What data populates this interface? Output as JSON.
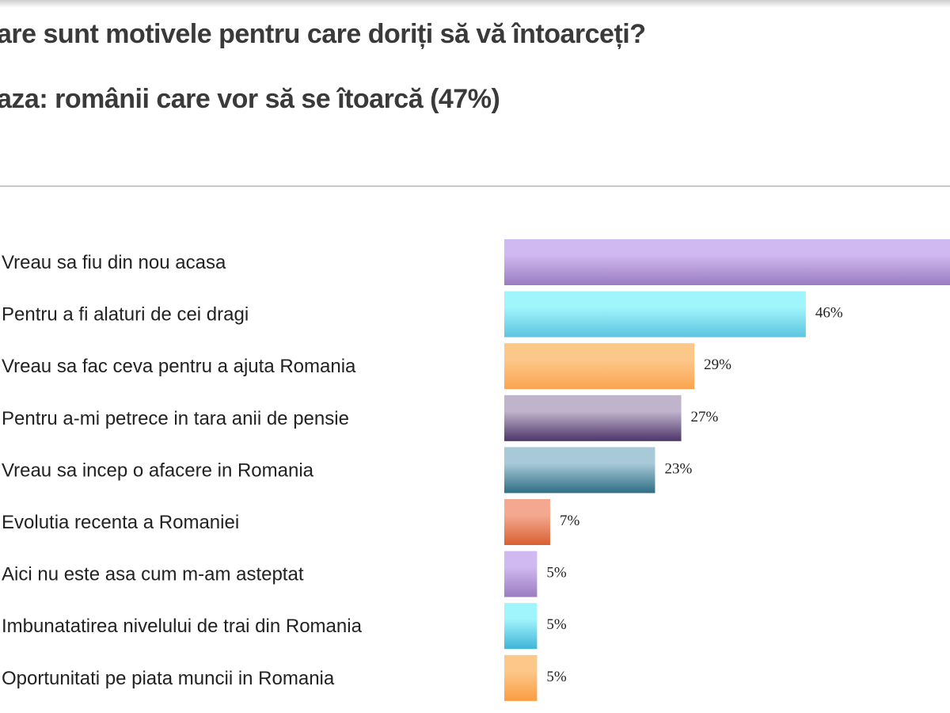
{
  "header": {
    "title": "are sunt motivele pentru care doriți să vă întoarceți?",
    "subtitle": "aza: românii care vor să se îtoarcă (47%)"
  },
  "chart_data": {
    "type": "bar",
    "orientation": "horizontal",
    "categories": [
      "Vreau sa fiu din nou acasa",
      "Pentru a fi alaturi de cei dragi",
      "Vreau sa fac ceva pentru a ajuta Romania",
      "Pentru a-mi petrece in tara anii de pensie",
      "Vreau sa incep o afacere in Romania",
      "Evolutia recenta a Romaniei",
      "Aici nu este asa cum m-am asteptat",
      "Imbunatatirea nivelului de trai din Romania",
      "Oportunitati pe piata muncii in Romania"
    ],
    "values": [
      null,
      46,
      29,
      27,
      23,
      7,
      5,
      5,
      5
    ],
    "value_labels": [
      "",
      "46%",
      "29%",
      "27%",
      "23%",
      "7%",
      "5%",
      "5%",
      "5%"
    ],
    "unit": "%",
    "grid": false,
    "legend": "none",
    "colors": [
      [
        "#d0b8f0",
        "#9a7cc0"
      ],
      [
        "#a0f4fc",
        "#5cc4e0"
      ],
      [
        "#fcc88a",
        "#fba450"
      ],
      [
        "#c0b4cc",
        "#4c3468"
      ],
      [
        "#a8cad8",
        "#2e6e84"
      ],
      [
        "#f4a890",
        "#d86030"
      ],
      [
        "#d0b8f0",
        "#9a7cc0"
      ],
      [
        "#a0f4fc",
        "#40b4d8"
      ],
      [
        "#fcc88a",
        "#fb9c40"
      ]
    ]
  }
}
